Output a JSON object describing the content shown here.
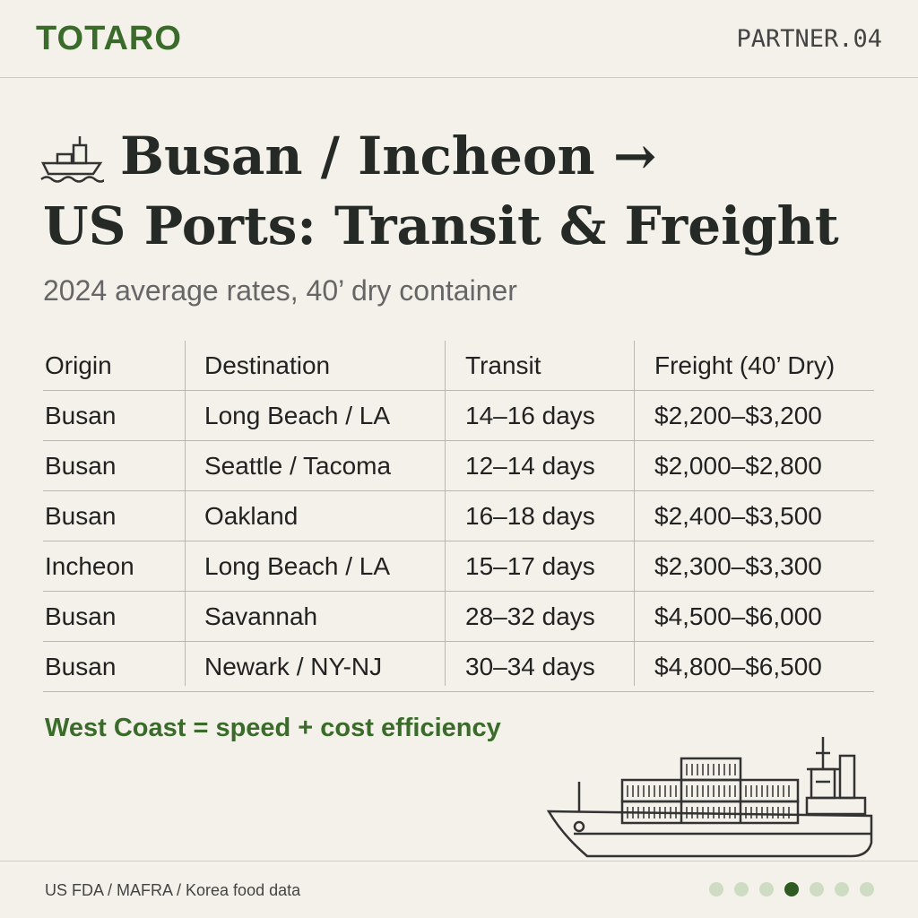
{
  "header": {
    "brand": "TOTARO",
    "page": "PARTNER.04"
  },
  "title": [
    "Busan / Incheon →",
    "US Ports: Transit & Freight"
  ],
  "subtitle": "2024 average rates, 40’ dry container",
  "table": {
    "columns": [
      "Origin",
      "Destination",
      "Transit",
      "Freight (40’ Dry)"
    ],
    "rows": [
      [
        "Busan",
        "Long Beach / LA",
        "14–16 days",
        "$2,200–$3,200"
      ],
      [
        "Busan",
        "Seattle / Tacoma",
        "12–14 days",
        "$2,000–$2,800"
      ],
      [
        "Busan",
        "Oakland",
        "16–18 days",
        "$2,400–$3,500"
      ],
      [
        "Incheon",
        "Long Beach / LA",
        "15–17 days",
        "$2,300–$3,300"
      ],
      [
        "Busan",
        "Savannah",
        "28–32 days",
        "$4,500–$6,000"
      ],
      [
        "Busan",
        "Newark / NY-NJ",
        "30–34 days",
        "$4,800–$6,500"
      ]
    ]
  },
  "note": "West Coast = speed + cost efficiency",
  "footer": {
    "source": "US FDA / MAFRA / Korea food data"
  }
}
